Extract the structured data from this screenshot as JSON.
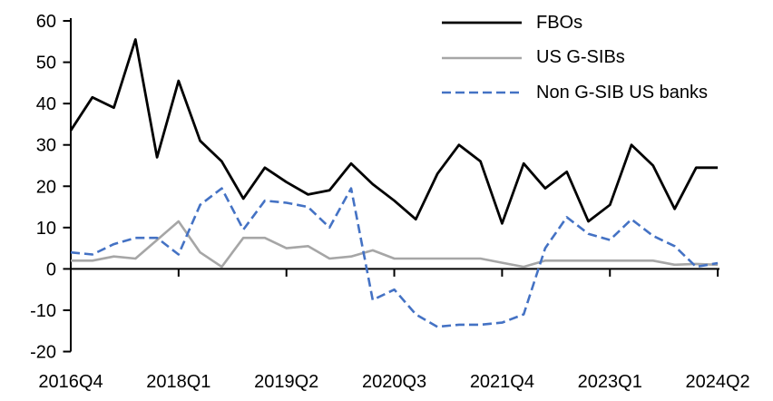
{
  "chart_data": {
    "type": "line",
    "title": "",
    "xlabel": "",
    "ylabel": "",
    "grid": false,
    "legend_position": "top-right",
    "background_color": "#ffffff",
    "axis_color": "#000000",
    "ylim": [
      -20,
      60
    ],
    "y_ticks": [
      60,
      50,
      40,
      30,
      20,
      10,
      0,
      -10,
      -20
    ],
    "y_tick_labels": [
      "60",
      "50",
      "40",
      "30",
      "20",
      "10",
      "0",
      "-10",
      "-20"
    ],
    "x_tick_indices": [
      0,
      5,
      10,
      15,
      20,
      25,
      30
    ],
    "x_tick_labels": [
      "2016Q4",
      "2018Q1",
      "2019Q2",
      "2020Q3",
      "2021Q4",
      "2023Q1",
      "2024Q2"
    ],
    "categories": [
      "2016Q4",
      "2017Q1",
      "2017Q2",
      "2017Q3",
      "2017Q4",
      "2018Q1",
      "2018Q2",
      "2018Q3",
      "2018Q4",
      "2019Q1",
      "2019Q2",
      "2019Q3",
      "2019Q4",
      "2020Q1",
      "2020Q2",
      "2020Q3",
      "2020Q4",
      "2021Q1",
      "2021Q2",
      "2021Q3",
      "2021Q4",
      "2022Q1",
      "2022Q2",
      "2022Q3",
      "2022Q4",
      "2023Q1",
      "2023Q2",
      "2023Q3",
      "2023Q4",
      "2024Q1",
      "2024Q2"
    ],
    "series": [
      {
        "name": "FBOs",
        "color": "#000000",
        "style": "solid",
        "values": [
          33.5,
          41.5,
          39,
          55.5,
          27,
          45.5,
          31,
          26,
          17,
          24.5,
          21,
          18,
          19,
          25.5,
          20.5,
          16.5,
          12,
          23,
          30,
          26,
          11,
          25.5,
          19.5,
          23.5,
          11.5,
          15.5,
          30,
          25,
          14.5,
          24.5,
          24.5
        ]
      },
      {
        "name": "US G-SIBs",
        "color": "#a6a6a6",
        "style": "solid",
        "values": [
          2,
          2,
          3,
          2.5,
          7,
          11.5,
          4,
          0.5,
          7.5,
          7.5,
          5,
          5.5,
          2.5,
          3,
          4.5,
          2.5,
          2.5,
          2.5,
          2.5,
          2.5,
          1.5,
          0.5,
          2,
          2,
          2,
          2,
          2,
          2,
          1,
          1.2,
          1
        ]
      },
      {
        "name": "Non G-SIB US banks",
        "color": "#4472c4",
        "style": "dashed",
        "values": [
          4,
          3.5,
          6,
          7.5,
          7.5,
          3.5,
          15.5,
          19.5,
          9.5,
          16.5,
          16,
          15,
          10,
          19.5,
          -7.5,
          -5,
          -11,
          -14,
          -13.5,
          -13.5,
          -13,
          -11,
          5,
          12.5,
          8.5,
          7,
          12,
          8,
          5.5,
          0.5,
          1.4
        ]
      }
    ]
  }
}
